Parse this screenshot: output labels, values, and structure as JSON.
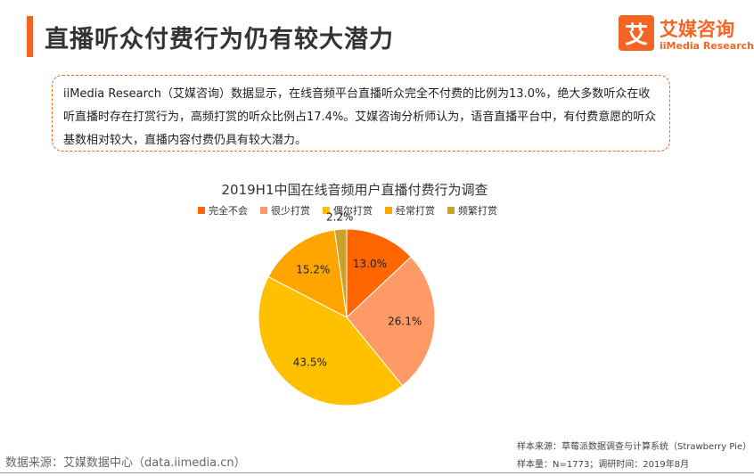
{
  "header": {
    "title": "直播听众付费行为仍有较大潜力",
    "logo_mark": "艾",
    "logo_cn": "艾媒咨询",
    "logo_en": "iiMedia Research"
  },
  "summary": {
    "text": "iiMedia Research（艾媒咨询）数据显示，在线音频平台直播听众完全不付费的比例为13.0%，绝大多数听众在收听直播时存在打赏行为，高频打赏的听众比例占17.4%。艾媒咨询分析师认为，语音直播平台中，有付费意愿的听众基数相对较大，直播内容付费仍具有较大潜力。"
  },
  "chart_data": {
    "type": "pie",
    "title": "2019H1中国在线音频用户直播付费行为调查",
    "categories": [
      "完全不会",
      "很少打赏",
      "偶尔打赏",
      "经常打赏",
      "频繁打赏"
    ],
    "values": [
      13.0,
      26.1,
      43.5,
      15.2,
      2.2
    ],
    "labels": [
      "13.0%",
      "26.1%",
      "43.5%",
      "15.2%",
      "2.2%"
    ],
    "colors": [
      "#ff6600",
      "#ff9966",
      "#ffc000",
      "#ffa500",
      "#c9a227"
    ],
    "legend_position": "top",
    "start_angle": "12 o'clock",
    "direction": "clockwise"
  },
  "footer": {
    "source": "数据来源：艾媒数据中心（data.iimedia.cn）",
    "sample_source": "样本来源：草莓派数据调查与计算系统（Strawberry Pie）",
    "sample_size": "样本量：N=1773；调研时间：2019年8月"
  }
}
